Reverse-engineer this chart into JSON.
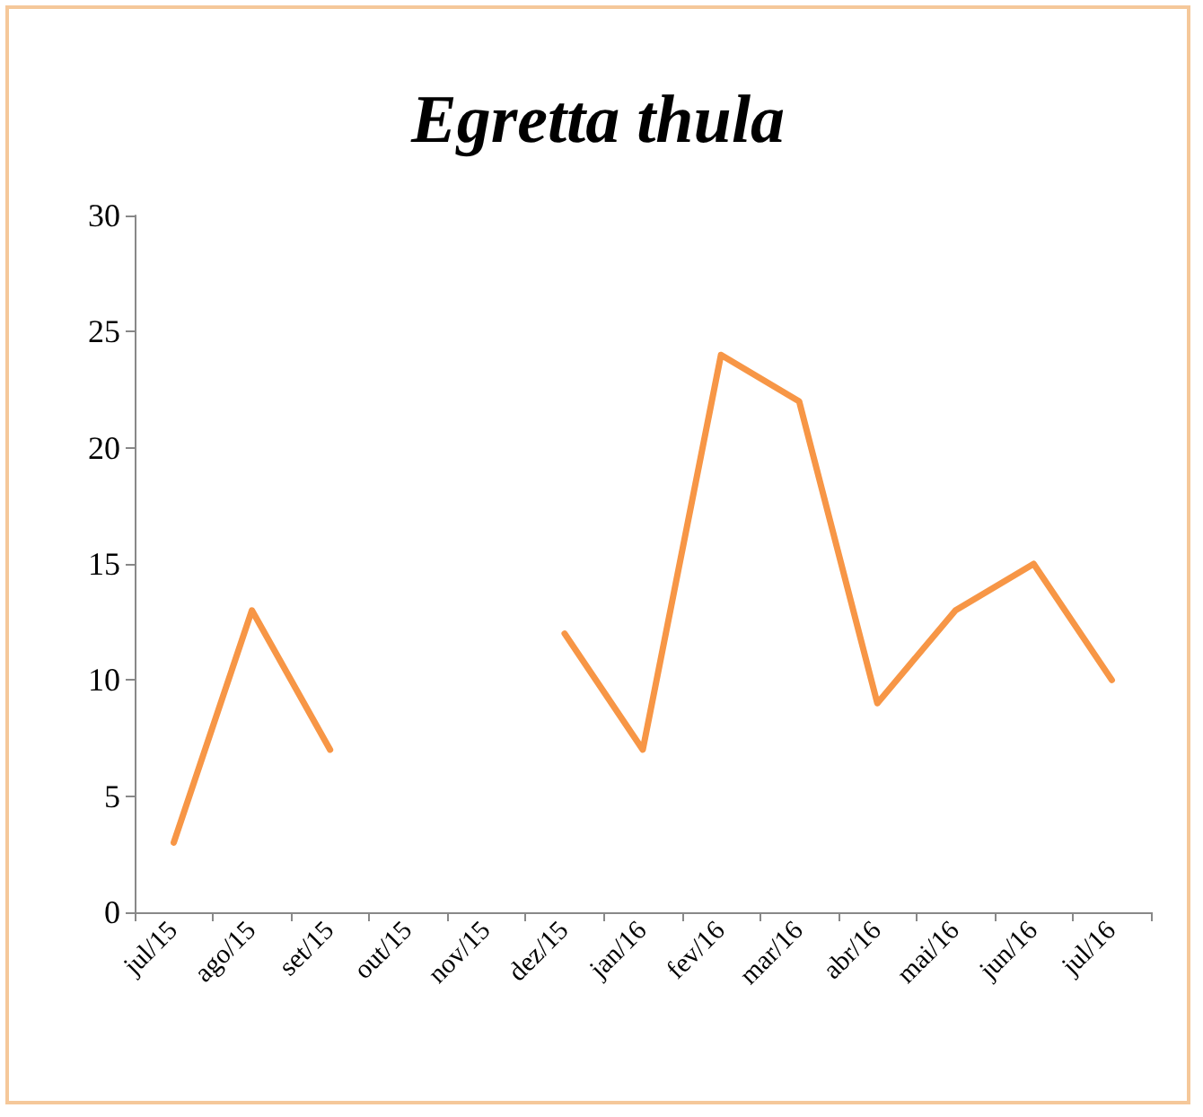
{
  "chart_data": {
    "type": "line",
    "title": "Egretta thula",
    "categories": [
      "jul/15",
      "ago/15",
      "set/15",
      "out/15",
      "nov/15",
      "dez/15",
      "jan/16",
      "fev/16",
      "mar/16",
      "abr/16",
      "mai/16",
      "jun/16",
      "jul/16"
    ],
    "series": [
      {
        "color": "#f79646",
        "values": [
          3,
          13,
          7,
          null,
          null,
          12,
          7,
          24,
          22,
          9,
          13,
          15,
          10
        ]
      }
    ],
    "ylim": [
      0,
      30
    ],
    "yticks": [
      0,
      5,
      10,
      15,
      20,
      25,
      30
    ],
    "grid": false,
    "marker": "none",
    "line_style": "solid"
  }
}
